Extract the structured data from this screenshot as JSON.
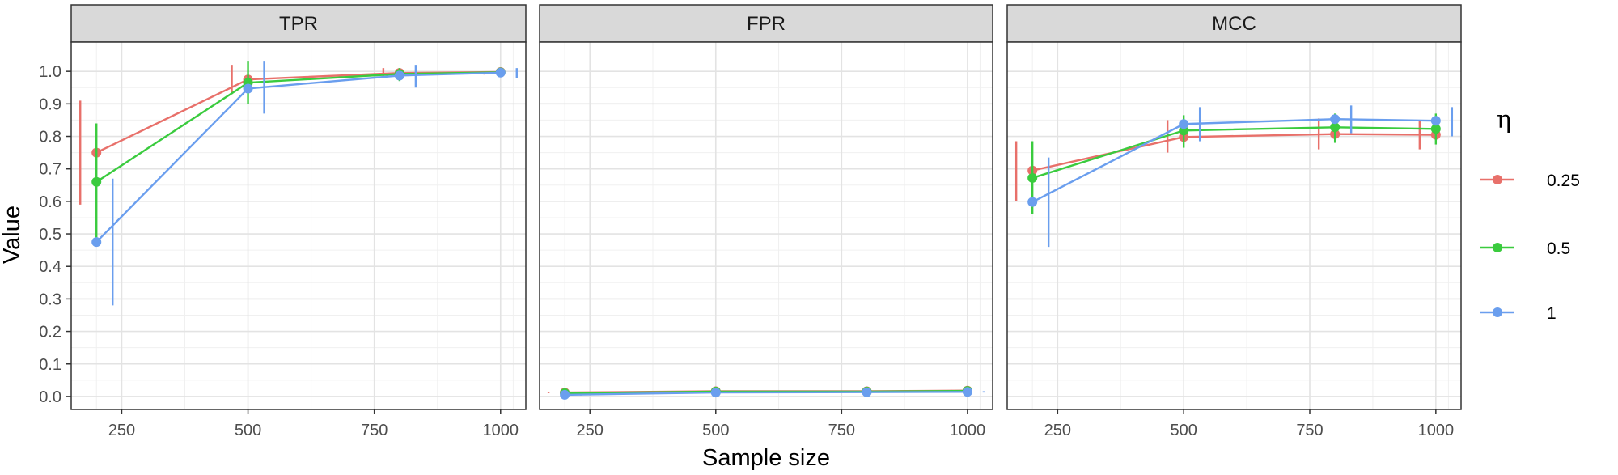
{
  "chart_data": {
    "type": "line",
    "xlabel": "Sample size",
    "ylabel": "Value",
    "x_ticks": [
      250,
      500,
      750,
      1000
    ],
    "xlim": [
      150,
      1050
    ],
    "y_ticks": [
      0.0,
      0.1,
      0.2,
      0.3,
      0.4,
      0.5,
      0.6,
      0.7,
      0.8,
      0.9,
      1.0
    ],
    "y_tick_labels": [
      "0.0",
      "0.1",
      "0.2",
      "0.3",
      "0.4",
      "0.5",
      "0.6",
      "0.7",
      "0.8",
      "0.9",
      "1.0"
    ],
    "ylim": [
      -0.04,
      1.09
    ],
    "grid": true,
    "legend": {
      "title": "η",
      "position": "right",
      "entries": [
        "0.25",
        "0.5",
        "1"
      ]
    },
    "colors": {
      "0.25": "#E8706A",
      "0.5": "#3ACB3E",
      "1": "#6A9EEE"
    },
    "x": [
      200,
      500,
      800,
      1000
    ],
    "panels": [
      {
        "title": "TPR",
        "series": [
          {
            "name": "0.25",
            "values": [
              0.75,
              0.975,
              0.995,
              0.998
            ],
            "lower": [
              0.59,
              0.93,
              0.98,
              0.99
            ],
            "upper": [
              0.91,
              1.02,
              1.01,
              1.0
            ]
          },
          {
            "name": "0.5",
            "values": [
              0.66,
              0.965,
              0.992,
              0.997
            ],
            "lower": [
              0.48,
              0.9,
              0.97,
              0.99
            ],
            "upper": [
              0.84,
              1.03,
              1.01,
              1.0
            ]
          },
          {
            "name": "1",
            "values": [
              0.475,
              0.947,
              0.987,
              0.996
            ],
            "lower": [
              0.28,
              0.87,
              0.95,
              0.98
            ],
            "upper": [
              0.67,
              1.03,
              1.02,
              1.01
            ]
          }
        ]
      },
      {
        "title": "FPR",
        "series": [
          {
            "name": "0.25",
            "values": [
              0.012,
              0.016,
              0.016,
              0.018
            ],
            "lower": [
              0.01,
              0.014,
              0.014,
              0.016
            ],
            "upper": [
              0.014,
              0.018,
              0.018,
              0.02
            ]
          },
          {
            "name": "0.5",
            "values": [
              0.01,
              0.015,
              0.015,
              0.017
            ],
            "lower": [
              0.008,
              0.013,
              0.013,
              0.015
            ],
            "upper": [
              0.012,
              0.017,
              0.017,
              0.019
            ]
          },
          {
            "name": "1",
            "values": [
              0.005,
              0.012,
              0.013,
              0.014
            ],
            "lower": [
              0.003,
              0.01,
              0.011,
              0.012
            ],
            "upper": [
              0.007,
              0.014,
              0.015,
              0.016
            ]
          }
        ]
      },
      {
        "title": "MCC",
        "series": [
          {
            "name": "0.25",
            "values": [
              0.695,
              0.798,
              0.807,
              0.805
            ],
            "lower": [
              0.6,
              0.75,
              0.76,
              0.76
            ],
            "upper": [
              0.785,
              0.85,
              0.855,
              0.85
            ]
          },
          {
            "name": "0.5",
            "values": [
              0.672,
              0.818,
              0.828,
              0.823
            ],
            "lower": [
              0.56,
              0.765,
              0.78,
              0.775
            ],
            "upper": [
              0.785,
              0.865,
              0.87,
              0.87
            ]
          },
          {
            "name": "1",
            "values": [
              0.598,
              0.838,
              0.853,
              0.848
            ],
            "lower": [
              0.46,
              0.785,
              0.81,
              0.8
            ],
            "upper": [
              0.735,
              0.89,
              0.895,
              0.89
            ]
          }
        ]
      }
    ]
  }
}
